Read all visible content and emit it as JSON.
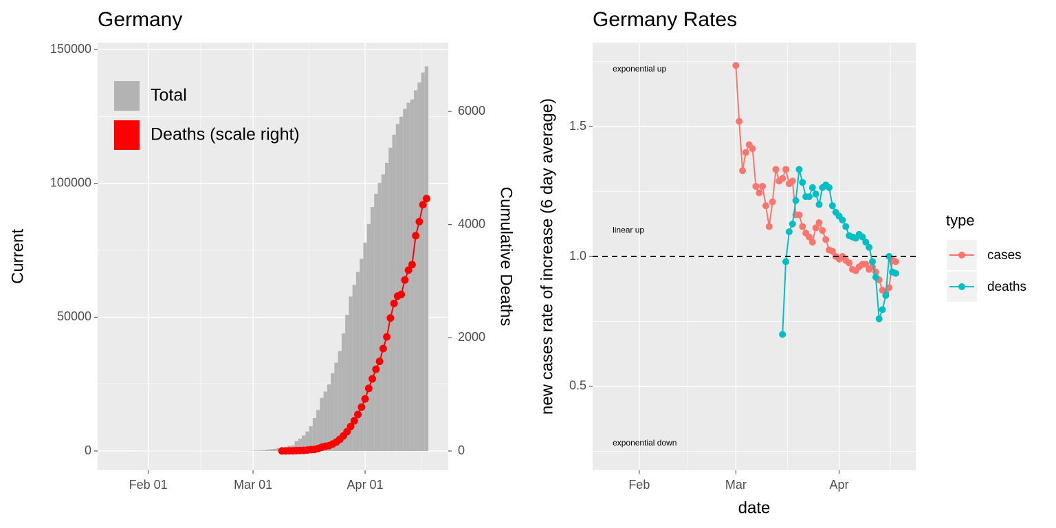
{
  "chart_data": [
    {
      "type": "combo",
      "title": "Germany",
      "y_label": "Current",
      "y2_label": "Cumulative Deaths",
      "categories": [
        "01-22",
        "01-23",
        "01-24",
        "01-25",
        "01-26",
        "01-27",
        "01-28",
        "01-29",
        "01-30",
        "01-31",
        "02-01",
        "02-02",
        "02-03",
        "02-04",
        "02-05",
        "02-06",
        "02-07",
        "02-08",
        "02-09",
        "02-10",
        "02-11",
        "02-12",
        "02-13",
        "02-14",
        "02-15",
        "02-16",
        "02-17",
        "02-18",
        "02-19",
        "02-20",
        "02-21",
        "02-22",
        "02-23",
        "02-24",
        "02-25",
        "02-26",
        "02-27",
        "02-28",
        "02-29",
        "03-01",
        "03-02",
        "03-03",
        "03-04",
        "03-05",
        "03-06",
        "03-07",
        "03-08",
        "03-09",
        "03-10",
        "03-11",
        "03-12",
        "03-13",
        "03-14",
        "03-15",
        "03-16",
        "03-17",
        "03-18",
        "03-19",
        "03-20",
        "03-21",
        "03-22",
        "03-23",
        "03-24",
        "03-25",
        "03-26",
        "03-27",
        "03-28",
        "03-29",
        "03-30",
        "03-31",
        "04-01",
        "04-02",
        "04-03",
        "04-04",
        "04-05",
        "04-06",
        "04-07",
        "04-08",
        "04-09",
        "04-10",
        "04-11",
        "04-12",
        "04-13",
        "04-14",
        "04-15",
        "04-16",
        "04-17",
        "04-18"
      ],
      "series": [
        {
          "name": "Total",
          "type": "bar",
          "color": "#b3b3b3",
          "values": [
            0,
            0,
            0,
            0,
            0,
            1,
            4,
            4,
            4,
            5,
            8,
            10,
            12,
            12,
            12,
            12,
            13,
            13,
            14,
            14,
            16,
            16,
            16,
            16,
            16,
            16,
            16,
            16,
            16,
            16,
            16,
            16,
            16,
            16,
            17,
            27,
            46,
            48,
            79,
            130,
            159,
            196,
            262,
            482,
            670,
            799,
            1040,
            1176,
            1457,
            1908,
            2078,
            3675,
            4585,
            5795,
            7272,
            9257,
            12327,
            15320,
            19848,
            22213,
            24873,
            29056,
            32986,
            37323,
            43938,
            50871,
            57695,
            62095,
            66885,
            71808,
            77872,
            84794,
            91159,
            96092,
            100123,
            103374,
            107663,
            113296,
            118181,
            122171,
            124908,
            127854,
            130072,
            131359,
            134753,
            137698,
            141397,
            143724
          ]
        },
        {
          "name": "Deaths (scale right)",
          "type": "line",
          "axis": "y2",
          "color": "#ff0000",
          "values": [
            null,
            null,
            null,
            null,
            null,
            null,
            null,
            null,
            null,
            null,
            null,
            null,
            null,
            null,
            null,
            null,
            null,
            null,
            null,
            null,
            null,
            null,
            null,
            null,
            null,
            null,
            null,
            null,
            null,
            null,
            null,
            null,
            null,
            null,
            null,
            null,
            null,
            null,
            null,
            null,
            null,
            null,
            null,
            null,
            null,
            null,
            null,
            2,
            2,
            3,
            3,
            7,
            9,
            11,
            17,
            24,
            28,
            44,
            67,
            84,
            94,
            123,
            157,
            206,
            267,
            342,
            433,
            533,
            645,
            775,
            920,
            1107,
            1275,
            1444,
            1584,
            1810,
            2016,
            2349,
            2607,
            2736,
            2767,
            3022,
            3194,
            3294,
            3804,
            4052,
            4352,
            4459
          ]
        }
      ],
      "xlim": [
        "01-18",
        "04-24"
      ],
      "xticks": [
        {
          "value": "02-01",
          "label": "Feb 01"
        },
        {
          "value": "03-01",
          "label": "Mar 01"
        },
        {
          "value": "04-01",
          "label": "Apr 01"
        }
      ],
      "ylim": [
        -7190,
        152570
      ],
      "yticks": [
        0,
        50000,
        100000,
        150000
      ],
      "y2lim": [
        -340,
        7215
      ],
      "y2ticks": [
        0,
        2000,
        4000,
        6000
      ],
      "grid": true,
      "legend": "top-left"
    },
    {
      "type": "line",
      "title": "Germany Rates",
      "x_label": "date",
      "y_label": "new cases rate of increase (6 day average)",
      "legend_title": "type",
      "categories": [
        "03-01",
        "03-02",
        "03-03",
        "03-04",
        "03-05",
        "03-06",
        "03-07",
        "03-08",
        "03-09",
        "03-10",
        "03-11",
        "03-12",
        "03-13",
        "03-14",
        "03-15",
        "03-16",
        "03-17",
        "03-18",
        "03-19",
        "03-20",
        "03-21",
        "03-22",
        "03-23",
        "03-24",
        "03-25",
        "03-26",
        "03-27",
        "03-28",
        "03-29",
        "03-30",
        "03-31",
        "04-01",
        "04-02",
        "04-03",
        "04-04",
        "04-05",
        "04-06",
        "04-07",
        "04-08",
        "04-09",
        "04-10",
        "04-11",
        "04-12",
        "04-13",
        "04-14",
        "04-15",
        "04-16",
        "04-17",
        "04-18"
      ],
      "series": [
        {
          "name": "cases",
          "color": "#f8766d",
          "values": [
            1.735,
            1.52,
            1.33,
            1.4,
            1.43,
            1.415,
            1.27,
            1.245,
            1.27,
            1.195,
            1.115,
            1.21,
            1.335,
            1.29,
            1.3,
            1.335,
            1.28,
            1.29,
            1.16,
            1.16,
            1.115,
            1.09,
            1.075,
            1.055,
            1.11,
            1.13,
            1.1,
            1.065,
            1.025,
            1.02,
            1.0,
            0.99,
            1.0,
            0.985,
            0.975,
            0.95,
            0.945,
            0.96,
            0.97,
            0.97,
            0.95,
            0.96,
            0.94,
            0.91,
            0.87,
            0.86,
            0.88,
            0.985,
            0.98
          ]
        },
        {
          "name": "deaths",
          "color": "#00bfc4",
          "values": [
            null,
            null,
            null,
            null,
            null,
            null,
            null,
            null,
            null,
            null,
            null,
            null,
            null,
            null,
            0.7,
            0.98,
            1.095,
            1.125,
            1.215,
            1.335,
            1.285,
            1.23,
            1.23,
            1.265,
            1.24,
            1.2,
            1.265,
            1.275,
            1.265,
            1.195,
            1.17,
            1.155,
            1.14,
            1.115,
            1.08,
            1.075,
            1.07,
            1.085,
            1.075,
            1.055,
            1.035,
            0.98,
            0.92,
            0.76,
            0.795,
            0.85,
            1.0,
            0.94,
            0.935
          ]
        }
      ],
      "xlim": [
        "01-18",
        "04-24"
      ],
      "xticks": [
        {
          "value": "02-01",
          "label": "Feb"
        },
        {
          "value": "03-01",
          "label": "Mar"
        },
        {
          "value": "04-01",
          "label": "Apr"
        }
      ],
      "ylim": [
        0.177,
        1.823
      ],
      "yticks": [
        0.5,
        {
          "value": 1,
          "label": "1.0"
        },
        1.5
      ],
      "hline": 1,
      "annotations": [
        {
          "label": "exponential up",
          "x": "01-24",
          "y": 1.72
        },
        {
          "label": "linear up",
          "x": "01-24",
          "y": 1.1
        },
        {
          "label": "exponential down",
          "x": "01-24",
          "y": 0.28
        }
      ],
      "grid": true,
      "legend": "right"
    }
  ]
}
